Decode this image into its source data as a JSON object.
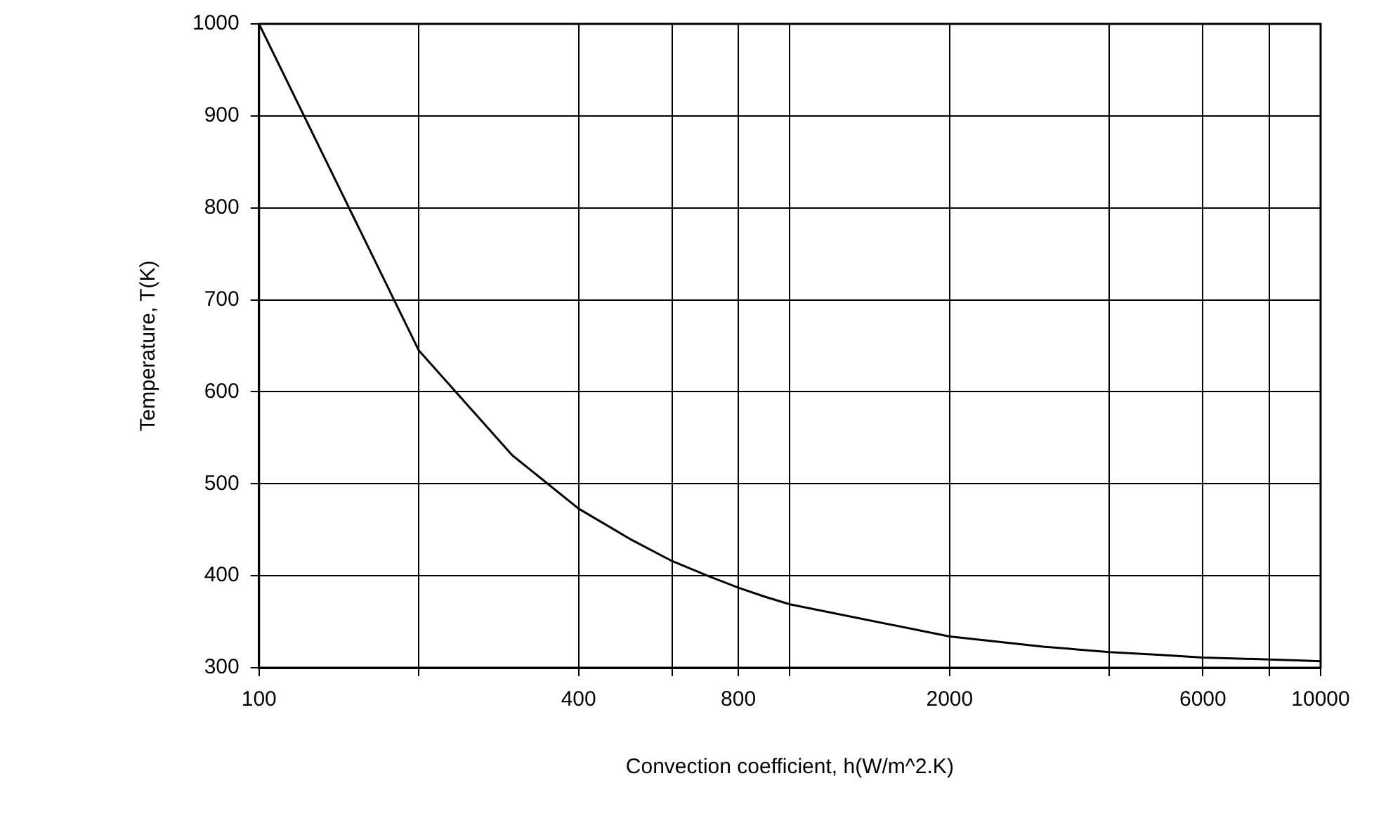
{
  "chart_data": {
    "type": "line",
    "xlabel": "Convection coefficient, h(W/m^2.K)",
    "ylabel": "Temperature, T(K)",
    "x": [
      100,
      200,
      300,
      400,
      500,
      600,
      700,
      800,
      900,
      1000,
      2000,
      3000,
      4000,
      5000,
      6000,
      7000,
      8000,
      9000,
      10000
    ],
    "series": [
      {
        "color": "#000000",
        "values": [
          1000,
          645,
          531,
          473,
          440,
          416,
          400,
          387,
          377,
          369,
          334,
          323,
          317,
          314,
          311,
          310,
          309,
          308,
          307
        ]
      }
    ],
    "log": "x",
    "xlim": [
      100,
      10000
    ],
    "xticks": [
      100,
      {
        "value": 200,
        "label": null
      },
      400,
      {
        "value": 600,
        "label": null
      },
      800,
      {
        "value": 1000,
        "label": null
      },
      2000,
      {
        "value": 4000,
        "label": null
      },
      6000,
      {
        "value": 8000,
        "label": null
      },
      10000
    ],
    "ylim": [
      300,
      1000
    ],
    "yticks": [
      300,
      400,
      500,
      600,
      700,
      800,
      900,
      1000
    ],
    "grid": true,
    "legend": false,
    "marker": "none",
    "line_style": "solid"
  }
}
